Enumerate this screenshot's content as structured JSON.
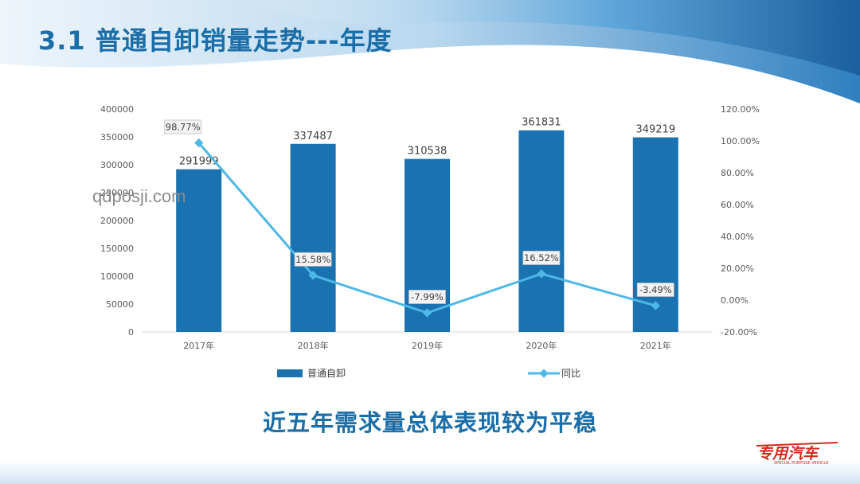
{
  "slide": {
    "title": "3.1 普通自卸销量走势---年度",
    "caption": "近五年需求量总体表现较为平稳",
    "watermark": "qdposji.com",
    "logo_text": "专用汽车",
    "logo_subtext": "SPECIAL PURPOSE VEHICLE"
  },
  "colors": {
    "title": "#1b6ea8",
    "bar": "#1b72b1",
    "line": "#4db8e8",
    "logo": "#d42a1e"
  },
  "chart_data": {
    "type": "bar",
    "categories": [
      "2017年",
      "2018年",
      "2019年",
      "2020年",
      "2021年"
    ],
    "series": [
      {
        "name": "普通自卸",
        "type": "bar",
        "axis": "left",
        "values": [
          291999,
          337487,
          310538,
          361831,
          349219
        ],
        "labels": [
          "291999",
          "337487",
          "310538",
          "361831",
          "349219"
        ]
      },
      {
        "name": "同比",
        "type": "line",
        "axis": "right",
        "values": [
          98.77,
          15.58,
          -7.99,
          16.52,
          -3.49
        ],
        "labels": [
          "98.77%",
          "15.58%",
          "-7.99%",
          "16.52%",
          "-3.49%"
        ]
      }
    ],
    "y_left": {
      "ylim": [
        0,
        400000
      ],
      "ticks": [
        "0",
        "50000",
        "100000",
        "150000",
        "200000",
        "250000",
        "300000",
        "350000",
        "400000"
      ]
    },
    "y_right": {
      "ylim": [
        -20,
        120
      ],
      "ticks": [
        "-20.00%",
        "0.00%",
        "20.00%",
        "40.00%",
        "60.00%",
        "80.00%",
        "100.00%",
        "120.00%"
      ]
    },
    "grid": false,
    "legend_position": "bottom"
  }
}
